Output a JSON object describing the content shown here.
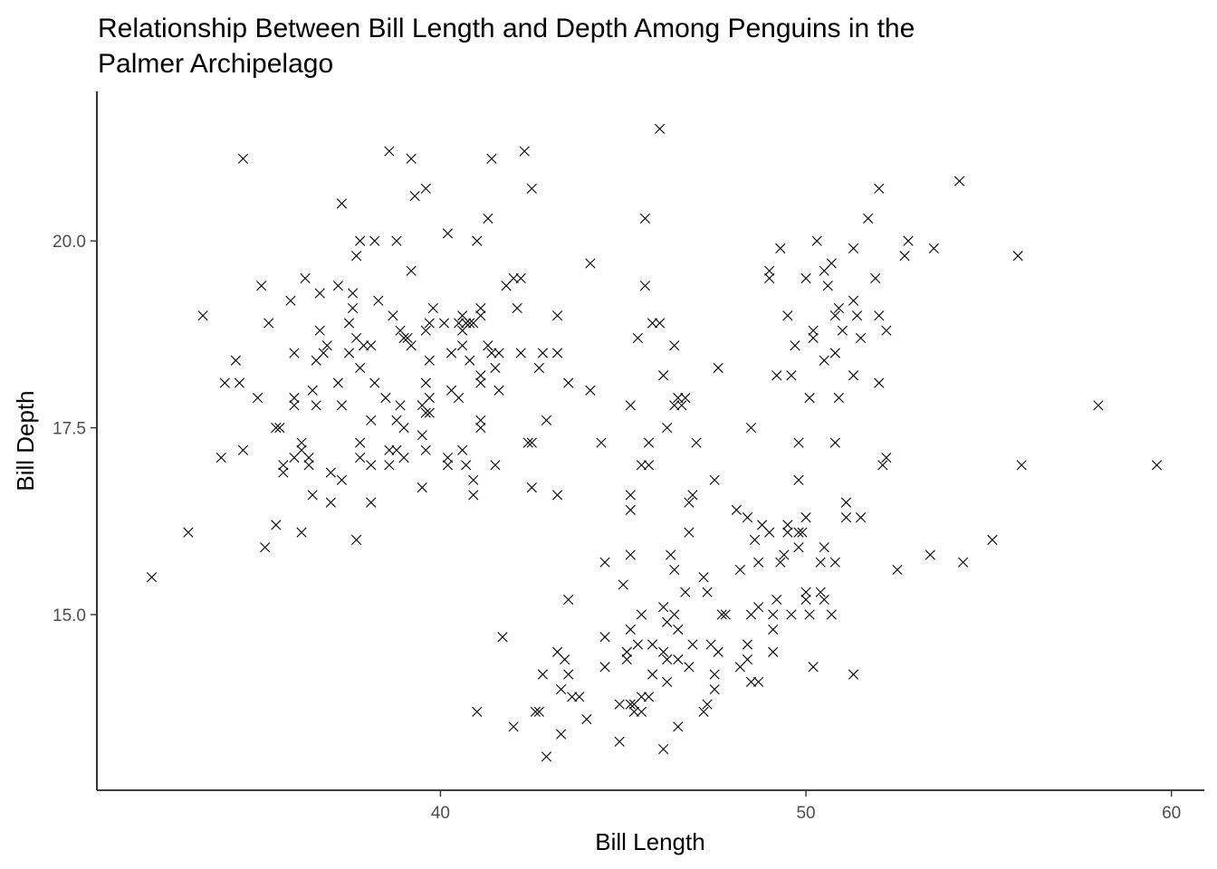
{
  "chart_data": {
    "type": "scatter",
    "title": "Relationship Between Bill Length and Depth Among Penguins in the Palmer Archipelago",
    "title_lines": [
      "Relationship Between Bill Length and Depth Among Penguins in the",
      "Palmer Archipelago"
    ],
    "xlabel": "Bill Length",
    "ylabel": "Bill Depth",
    "xlim": [
      30.6,
      60.9
    ],
    "ylim": [
      12.65,
      22.0
    ],
    "xticks": [
      40,
      50,
      60
    ],
    "xtick_labels": [
      "40",
      "50",
      "60"
    ],
    "yticks": [
      15.0,
      17.5,
      20.0
    ],
    "ytick_labels": [
      "15.0",
      "17.5",
      "20.0"
    ],
    "marker": "x",
    "grid": false,
    "legend": "none",
    "colors": {
      "point": "#000000",
      "axis": "#000000",
      "tick_label": "#4d4d4d"
    },
    "points": [
      [
        32.1,
        15.5
      ],
      [
        33.1,
        16.1
      ],
      [
        33.5,
        19.0
      ],
      [
        34.0,
        17.1
      ],
      [
        34.1,
        18.1
      ],
      [
        34.4,
        18.4
      ],
      [
        34.5,
        18.1
      ],
      [
        34.6,
        21.1
      ],
      [
        34.6,
        17.2
      ],
      [
        35.0,
        17.9
      ],
      [
        35.1,
        19.4
      ],
      [
        35.2,
        15.9
      ],
      [
        35.3,
        18.9
      ],
      [
        35.5,
        17.5
      ],
      [
        35.5,
        16.2
      ],
      [
        35.6,
        17.5
      ],
      [
        35.7,
        17.0
      ],
      [
        35.7,
        16.9
      ],
      [
        35.9,
        19.2
      ],
      [
        36.0,
        17.9
      ],
      [
        36.0,
        18.5
      ],
      [
        36.0,
        17.8
      ],
      [
        36.0,
        17.1
      ],
      [
        36.2,
        16.1
      ],
      [
        36.2,
        17.2
      ],
      [
        36.2,
        17.3
      ],
      [
        36.3,
        19.5
      ],
      [
        36.4,
        17.1
      ],
      [
        36.4,
        17.0
      ],
      [
        36.5,
        16.6
      ],
      [
        36.5,
        18.0
      ],
      [
        36.6,
        17.8
      ],
      [
        36.6,
        18.4
      ],
      [
        36.7,
        18.8
      ],
      [
        36.7,
        19.3
      ],
      [
        36.8,
        18.5
      ],
      [
        36.9,
        18.6
      ],
      [
        37.0,
        16.5
      ],
      [
        37.0,
        16.9
      ],
      [
        37.2,
        18.1
      ],
      [
        37.2,
        19.4
      ],
      [
        37.3,
        20.5
      ],
      [
        37.3,
        16.8
      ],
      [
        37.3,
        17.8
      ],
      [
        37.5,
        18.9
      ],
      [
        37.5,
        18.5
      ],
      [
        37.6,
        19.3
      ],
      [
        37.6,
        19.1
      ],
      [
        37.7,
        19.8
      ],
      [
        37.7,
        18.7
      ],
      [
        37.7,
        16.0
      ],
      [
        37.8,
        18.3
      ],
      [
        37.8,
        17.1
      ],
      [
        37.8,
        17.3
      ],
      [
        37.8,
        20.0
      ],
      [
        37.9,
        18.6
      ],
      [
        38.1,
        18.6
      ],
      [
        38.1,
        17.0
      ],
      [
        38.1,
        16.5
      ],
      [
        38.1,
        17.6
      ],
      [
        38.2,
        18.1
      ],
      [
        38.2,
        20.0
      ],
      [
        38.3,
        19.2
      ],
      [
        38.5,
        17.9
      ],
      [
        38.6,
        21.2
      ],
      [
        38.6,
        17.2
      ],
      [
        38.6,
        17.0
      ],
      [
        38.7,
        19.0
      ],
      [
        38.8,
        17.2
      ],
      [
        38.8,
        20.0
      ],
      [
        38.8,
        17.6
      ],
      [
        38.9,
        18.8
      ],
      [
        38.9,
        17.8
      ],
      [
        39.0,
        18.7
      ],
      [
        39.0,
        17.5
      ],
      [
        39.0,
        17.1
      ],
      [
        39.1,
        18.7
      ],
      [
        39.2,
        19.6
      ],
      [
        39.2,
        18.6
      ],
      [
        39.2,
        21.1
      ],
      [
        39.3,
        20.6
      ],
      [
        39.5,
        16.7
      ],
      [
        39.5,
        17.4
      ],
      [
        39.5,
        17.8
      ],
      [
        39.6,
        17.7
      ],
      [
        39.6,
        18.1
      ],
      [
        39.6,
        20.7
      ],
      [
        39.6,
        17.2
      ],
      [
        39.6,
        18.8
      ],
      [
        39.7,
        17.7
      ],
      [
        39.7,
        18.4
      ],
      [
        39.7,
        18.9
      ],
      [
        39.7,
        17.9
      ],
      [
        39.8,
        19.1
      ],
      [
        40.1,
        18.9
      ],
      [
        40.2,
        17.0
      ],
      [
        40.2,
        17.1
      ],
      [
        40.2,
        20.1
      ],
      [
        40.3,
        18.0
      ],
      [
        40.3,
        18.5
      ],
      [
        40.5,
        18.9
      ],
      [
        40.5,
        17.9
      ],
      [
        40.6,
        18.6
      ],
      [
        40.6,
        18.8
      ],
      [
        40.6,
        17.2
      ],
      [
        40.6,
        19.0
      ],
      [
        40.7,
        17.0
      ],
      [
        40.7,
        18.9
      ],
      [
        40.8,
        18.4
      ],
      [
        40.8,
        18.9
      ],
      [
        40.9,
        16.6
      ],
      [
        40.9,
        16.8
      ],
      [
        40.9,
        18.9
      ],
      [
        41.0,
        20.0
      ],
      [
        41.0,
        13.7
      ],
      [
        41.1,
        17.6
      ],
      [
        41.1,
        18.2
      ],
      [
        41.1,
        19.0
      ],
      [
        41.1,
        18.1
      ],
      [
        41.1,
        17.5
      ],
      [
        41.1,
        19.1
      ],
      [
        41.3,
        20.3
      ],
      [
        41.3,
        18.6
      ],
      [
        41.4,
        18.5
      ],
      [
        41.4,
        21.1
      ],
      [
        41.5,
        17.0
      ],
      [
        41.5,
        18.3
      ],
      [
        41.6,
        18.0
      ],
      [
        41.6,
        18.5
      ],
      [
        41.7,
        14.7
      ],
      [
        41.8,
        19.4
      ],
      [
        42.0,
        19.5
      ],
      [
        42.0,
        13.5
      ],
      [
        42.1,
        19.1
      ],
      [
        42.2,
        18.5
      ],
      [
        42.2,
        19.5
      ],
      [
        42.3,
        21.2
      ],
      [
        42.4,
        17.3
      ],
      [
        42.5,
        20.7
      ],
      [
        42.5,
        16.7
      ],
      [
        42.5,
        17.3
      ],
      [
        42.6,
        13.7
      ],
      [
        42.7,
        18.3
      ],
      [
        42.7,
        13.7
      ],
      [
        42.8,
        18.5
      ],
      [
        42.8,
        14.2
      ],
      [
        42.9,
        17.6
      ],
      [
        42.9,
        13.1
      ],
      [
        43.2,
        19.0
      ],
      [
        43.2,
        18.5
      ],
      [
        43.2,
        16.6
      ],
      [
        43.2,
        14.5
      ],
      [
        43.3,
        13.4
      ],
      [
        43.3,
        14.0
      ],
      [
        43.4,
        14.4
      ],
      [
        43.5,
        18.1
      ],
      [
        43.5,
        14.2
      ],
      [
        43.5,
        15.2
      ],
      [
        43.6,
        13.9
      ],
      [
        43.8,
        13.9
      ],
      [
        44.0,
        13.6
      ],
      [
        44.1,
        18.0
      ],
      [
        44.1,
        19.7
      ],
      [
        44.4,
        17.3
      ],
      [
        44.5,
        15.7
      ],
      [
        44.5,
        14.7
      ],
      [
        44.5,
        14.3
      ],
      [
        44.9,
        13.8
      ],
      [
        44.9,
        13.3
      ],
      [
        45.0,
        15.4
      ],
      [
        45.1,
        14.5
      ],
      [
        45.1,
        14.4
      ],
      [
        45.2,
        16.6
      ],
      [
        45.2,
        17.8
      ],
      [
        45.2,
        15.8
      ],
      [
        45.2,
        14.8
      ],
      [
        45.2,
        13.8
      ],
      [
        45.2,
        16.4
      ],
      [
        45.3,
        13.7
      ],
      [
        45.3,
        13.8
      ],
      [
        45.4,
        14.6
      ],
      [
        45.4,
        18.7
      ],
      [
        45.5,
        13.7
      ],
      [
        45.5,
        17.0
      ],
      [
        45.5,
        15.0
      ],
      [
        45.5,
        13.9
      ],
      [
        45.6,
        20.3
      ],
      [
        45.6,
        19.4
      ],
      [
        45.7,
        17.3
      ],
      [
        45.7,
        17.0
      ],
      [
        45.7,
        13.9
      ],
      [
        45.8,
        14.6
      ],
      [
        45.8,
        14.2
      ],
      [
        45.8,
        18.9
      ],
      [
        46.0,
        21.5
      ],
      [
        46.0,
        18.9
      ],
      [
        46.1,
        18.2
      ],
      [
        46.1,
        15.1
      ],
      [
        46.1,
        14.5
      ],
      [
        46.1,
        13.2
      ],
      [
        46.2,
        14.1
      ],
      [
        46.2,
        14.9
      ],
      [
        46.2,
        14.4
      ],
      [
        46.2,
        17.5
      ],
      [
        46.3,
        15.8
      ],
      [
        46.4,
        17.8
      ],
      [
        46.4,
        15.6
      ],
      [
        46.4,
        18.6
      ],
      [
        46.4,
        15.0
      ],
      [
        46.5,
        14.8
      ],
      [
        46.5,
        13.5
      ],
      [
        46.5,
        14.4
      ],
      [
        46.5,
        17.9
      ],
      [
        46.6,
        17.8
      ],
      [
        46.7,
        15.3
      ],
      [
        46.7,
        17.9
      ],
      [
        46.8,
        14.3
      ],
      [
        46.8,
        16.1
      ],
      [
        46.8,
        16.5
      ],
      [
        46.9,
        16.6
      ],
      [
        46.9,
        14.6
      ],
      [
        47.0,
        17.3
      ],
      [
        47.2,
        13.7
      ],
      [
        47.2,
        15.5
      ],
      [
        47.3,
        15.3
      ],
      [
        47.3,
        13.8
      ],
      [
        47.4,
        14.6
      ],
      [
        47.5,
        14.0
      ],
      [
        47.5,
        14.2
      ],
      [
        47.5,
        16.8
      ],
      [
        47.6,
        18.3
      ],
      [
        47.6,
        14.5
      ],
      [
        47.7,
        15.0
      ],
      [
        47.8,
        15.0
      ],
      [
        48.1,
        16.4
      ],
      [
        48.2,
        14.3
      ],
      [
        48.2,
        15.6
      ],
      [
        48.4,
        14.6
      ],
      [
        48.4,
        14.4
      ],
      [
        48.4,
        16.3
      ],
      [
        48.5,
        14.1
      ],
      [
        48.5,
        15.0
      ],
      [
        48.5,
        17.5
      ],
      [
        48.6,
        16.0
      ],
      [
        48.7,
        14.1
      ],
      [
        48.7,
        15.1
      ],
      [
        48.7,
        15.7
      ],
      [
        48.8,
        16.2
      ],
      [
        49.0,
        16.1
      ],
      [
        49.0,
        19.6
      ],
      [
        49.0,
        19.5
      ],
      [
        49.1,
        14.8
      ],
      [
        49.1,
        15.0
      ],
      [
        49.1,
        14.5
      ],
      [
        49.2,
        15.2
      ],
      [
        49.2,
        18.2
      ],
      [
        49.3,
        15.7
      ],
      [
        49.3,
        19.9
      ],
      [
        49.4,
        15.8
      ],
      [
        49.5,
        16.1
      ],
      [
        49.5,
        19.0
      ],
      [
        49.5,
        16.2
      ],
      [
        49.6,
        18.2
      ],
      [
        49.6,
        15.0
      ],
      [
        49.7,
        18.6
      ],
      [
        49.8,
        16.1
      ],
      [
        49.8,
        15.9
      ],
      [
        49.8,
        17.3
      ],
      [
        49.8,
        16.8
      ],
      [
        49.9,
        16.1
      ],
      [
        50.0,
        15.3
      ],
      [
        50.0,
        15.2
      ],
      [
        50.0,
        16.3
      ],
      [
        50.0,
        19.5
      ],
      [
        50.1,
        15.0
      ],
      [
        50.1,
        17.9
      ],
      [
        50.2,
        18.8
      ],
      [
        50.2,
        14.3
      ],
      [
        50.2,
        18.7
      ],
      [
        50.3,
        20.0
      ],
      [
        50.4,
        15.3
      ],
      [
        50.4,
        15.7
      ],
      [
        50.5,
        15.9
      ],
      [
        50.5,
        15.2
      ],
      [
        50.5,
        18.4
      ],
      [
        50.5,
        19.6
      ],
      [
        50.6,
        19.4
      ],
      [
        50.7,
        15.0
      ],
      [
        50.7,
        19.7
      ],
      [
        50.8,
        18.5
      ],
      [
        50.8,
        19.0
      ],
      [
        50.8,
        17.3
      ],
      [
        50.8,
        15.7
      ],
      [
        50.9,
        17.9
      ],
      [
        50.9,
        19.1
      ],
      [
        51.0,
        18.8
      ],
      [
        51.1,
        16.5
      ],
      [
        51.1,
        16.3
      ],
      [
        51.3,
        19.2
      ],
      [
        51.3,
        19.9
      ],
      [
        51.3,
        18.2
      ],
      [
        51.3,
        14.2
      ],
      [
        51.4,
        19.0
      ],
      [
        51.5,
        16.3
      ],
      [
        51.5,
        18.7
      ],
      [
        51.7,
        20.3
      ],
      [
        51.9,
        19.5
      ],
      [
        52.0,
        18.1
      ],
      [
        52.0,
        19.0
      ],
      [
        52.0,
        20.7
      ],
      [
        52.1,
        17.0
      ],
      [
        52.2,
        18.8
      ],
      [
        52.2,
        17.1
      ],
      [
        52.5,
        15.6
      ],
      [
        52.7,
        19.8
      ],
      [
        52.8,
        20.0
      ],
      [
        53.4,
        15.8
      ],
      [
        53.5,
        19.9
      ],
      [
        54.2,
        20.8
      ],
      [
        54.3,
        15.7
      ],
      [
        55.1,
        16.0
      ],
      [
        55.8,
        19.8
      ],
      [
        55.9,
        17.0
      ],
      [
        58.0,
        17.8
      ],
      [
        59.6,
        17.0
      ]
    ]
  }
}
